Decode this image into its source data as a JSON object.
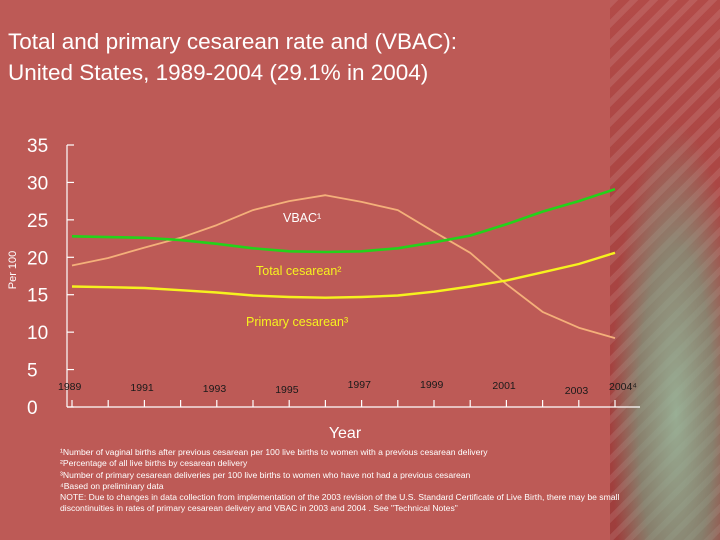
{
  "title": {
    "line1": "Total and primary cesarean rate and (VBAC):",
    "line2": "United States,  1989-2004 (29.1% in 2004)"
  },
  "colors": {
    "background": "#bd5a56",
    "vbac": "#f4b07a",
    "total": "#24d21a",
    "primary": "#f6f21e",
    "axis": "#ffffff"
  },
  "chart_data": {
    "type": "line",
    "xlabel": "Year",
    "ylabel": "Per 100",
    "x": [
      1989,
      1990,
      1991,
      1992,
      1993,
      1994,
      1995,
      1996,
      1997,
      1998,
      1999,
      2000,
      2001,
      2002,
      2003,
      2004
    ],
    "x_tick_labels": [
      "1989",
      "1991",
      "1993",
      "1995",
      "1997",
      "1999",
      "2001",
      "2003",
      "2004⁴"
    ],
    "ylim": [
      0,
      35
    ],
    "y_ticks": [
      "0",
      "5",
      "10",
      "15",
      "20",
      "25",
      "30",
      "35"
    ],
    "grid": false,
    "series": [
      {
        "name": "VBAC¹",
        "values": [
          18.9,
          19.9,
          21.3,
          22.6,
          24.3,
          26.3,
          27.5,
          28.3,
          27.4,
          26.3,
          23.4,
          20.6,
          16.4,
          12.7,
          10.6,
          9.2
        ]
      },
      {
        "name": "Total cesarean²",
        "values": [
          22.8,
          22.7,
          22.6,
          22.3,
          21.8,
          21.2,
          20.8,
          20.7,
          20.8,
          21.2,
          22.0,
          22.9,
          24.4,
          26.1,
          27.5,
          29.1
        ]
      },
      {
        "name": "Primary cesarean³",
        "values": [
          16.1,
          16.0,
          15.9,
          15.6,
          15.3,
          14.9,
          14.7,
          14.6,
          14.7,
          14.9,
          15.4,
          16.1,
          16.9,
          18.0,
          19.1,
          20.6
        ]
      }
    ]
  },
  "footnotes": [
    "¹Number of vaginal births after previous cesarean per 100 live births  to women with a previous cesarean delivery",
    "²Percentage of all live births by cesarean delivery",
    "³Number of primary cesarean deliveries per 100 live births  to women who have not had a previous cesarean",
    "⁴Based on preliminary data",
    "NOTE: Due to changes in data collection from implementation of the 2003 revision of the U.S. Standard Certificate of Live Birth, there may be small",
    "discontinuities in rates of primary cesarean delivery and VBAC in 2003 and 2004 . See \"Technical Notes\""
  ]
}
